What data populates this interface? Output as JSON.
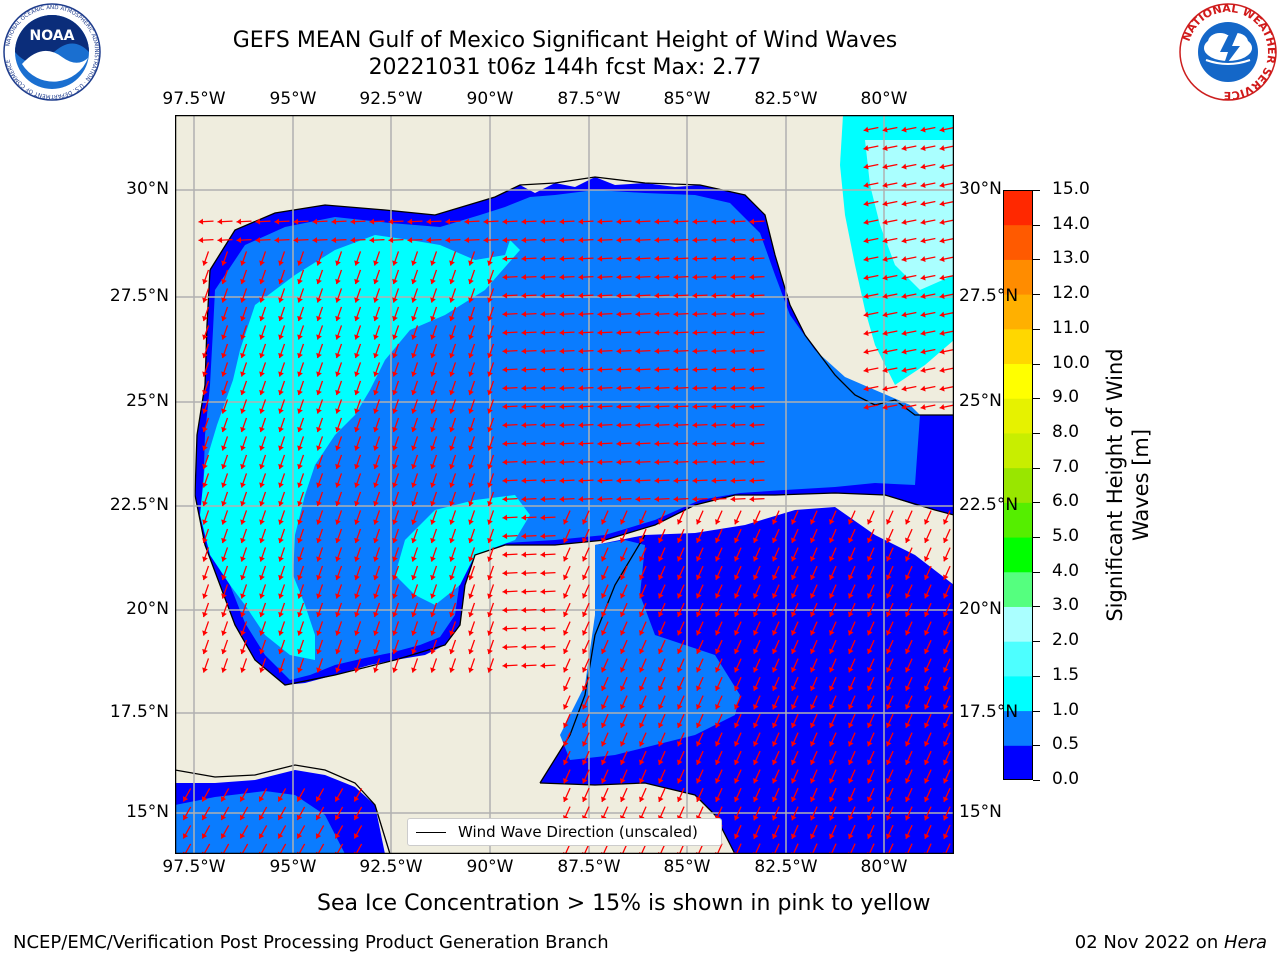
{
  "title_line1": "GEFS MEAN Gulf of Mexico Significant Height of Wind Waves",
  "title_line2": "20221031 t06z 144h fcst   Max: 2.77",
  "logos": {
    "left": "NOAA",
    "left_ring": "NATIONAL OCEANIC AND ATMOSPHERIC ADMINISTRATION · U.S. DEPARTMENT OF COMMERCE",
    "right": "NATIONAL WEATHER SERVICE"
  },
  "lon_ticks": [
    "97.5°W",
    "95°W",
    "92.5°W",
    "90°W",
    "87.5°W",
    "85°W",
    "82.5°W",
    "80°W"
  ],
  "lat_ticks": [
    "30°N",
    "27.5°N",
    "25°N",
    "22.5°N",
    "20°N",
    "17.5°N",
    "15°N"
  ],
  "legend_label": "Wind Wave Direction (unscaled)",
  "colorbar": {
    "label": "Significant Height of Wind Waves [m]",
    "label_line1": "Significant Height of Wind",
    "label_line2": "Waves [m]",
    "ticks": [
      "0.0",
      "0.5",
      "1.0",
      "1.5",
      "2.0",
      "3.0",
      "4.0",
      "5.0",
      "6.0",
      "7.0",
      "8.0",
      "9.0",
      "10.0",
      "11.0",
      "12.0",
      "13.0",
      "14.0",
      "15.0"
    ],
    "colors": [
      "#0000ff",
      "#0a7cff",
      "#00ffff",
      "#4dffff",
      "#aaffff",
      "#55ff7f",
      "#00ff00",
      "#55ee00",
      "#99e600",
      "#c8ee00",
      "#e6f200",
      "#ffff00",
      "#ffd700",
      "#ffb000",
      "#ff8c00",
      "#ff5a00",
      "#ff2800"
    ]
  },
  "colors": {
    "land": "#efedde",
    "vector": "#ff0000",
    "grid": "#b0b0b0"
  },
  "sea_ice_note": "Sea Ice Concentration > 15% is shown in pink to yellow",
  "footer_left": "NCEP/EMC/Verification Post Processing Product Generation Branch",
  "footer_right_date": "02 Nov 2022 on ",
  "footer_right_host": "Hera"
}
